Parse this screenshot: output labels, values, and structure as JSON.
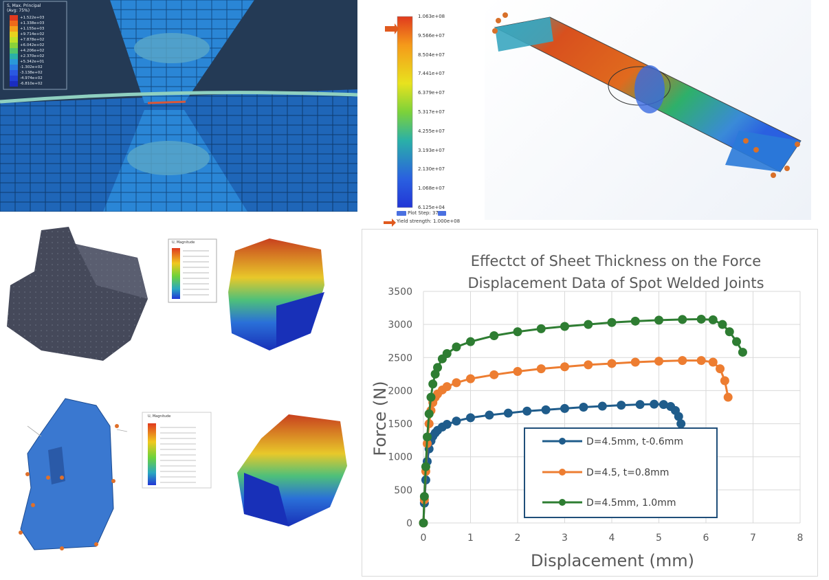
{
  "fea_top_left": {
    "legend_title": "S, Max. Principal",
    "legend_subtitle": "(Avg: 75%)",
    "legend_values": [
      "+1.522e+03",
      "+1.338e+03",
      "+1.155e+03",
      "+9.714e+02",
      "+7.878e+02",
      "+6.042e+02",
      "+4.206e+02",
      "+2.370e+02",
      "+5.342e+01",
      "-1.302e+02",
      "-3.138e+02",
      "-4.974e+02",
      "-6.810e+02"
    ]
  },
  "fea_top_middle": {
    "legend_values": [
      "1.063e+08",
      "9.566e+07",
      "8.504e+07",
      "7.441e+07",
      "6.379e+07",
      "5.317e+07",
      "4.255e+07",
      "3.193e+07",
      "2.130e+07",
      "1.068e+07",
      "6.125e+04"
    ],
    "plot_step": "Plot Step: 37",
    "yield_strength": "Yield strength: 1.000e+08",
    "colors": [
      "#e03a1e",
      "#f07a1a",
      "#f5b21a",
      "#e8e21e",
      "#b8e028",
      "#7cd23a",
      "#46c46c",
      "#2ab0a8",
      "#2a8ad8",
      "#2a60e0",
      "#2236d6"
    ]
  },
  "fea_mid_legend": {
    "title": "U, Magnitude"
  },
  "fea_low_legend": {
    "title": "U, Magnitude"
  },
  "chart_data": {
    "type": "scatter",
    "title_line1": "Effectct  of Sheet Thickness on the Force",
    "title_line2": "Displacement Data of Spot Welded Joints",
    "xlabel": "Displacement (mm)",
    "ylabel": "Force (N)",
    "xlim": [
      0,
      8
    ],
    "ylim": [
      0,
      3500
    ],
    "x_ticks": [
      0,
      1,
      2,
      3,
      4,
      5,
      6,
      7,
      8
    ],
    "y_ticks": [
      0,
      500,
      1000,
      1500,
      2000,
      2500,
      3000,
      3500
    ],
    "grid": true,
    "legend_position": "inside lower-center",
    "series": [
      {
        "name": "D=4.5mm, t-0.6mm",
        "color": "#1f5c8b",
        "x": [
          0,
          0.02,
          0.05,
          0.08,
          0.12,
          0.16,
          0.2,
          0.25,
          0.3,
          0.4,
          0.5,
          0.7,
          1.0,
          1.4,
          1.8,
          2.2,
          2.6,
          3.0,
          3.4,
          3.8,
          4.2,
          4.6,
          4.9,
          5.1,
          5.25,
          5.35,
          5.42,
          5.47
        ],
        "y": [
          0,
          300,
          650,
          930,
          1120,
          1240,
          1310,
          1360,
          1400,
          1450,
          1490,
          1540,
          1590,
          1630,
          1660,
          1690,
          1710,
          1730,
          1750,
          1765,
          1780,
          1790,
          1795,
          1790,
          1760,
          1700,
          1610,
          1500
        ]
      },
      {
        "name": "D=4.5, t=0.8mm",
        "color": "#ed7d31",
        "x": [
          0,
          0.02,
          0.05,
          0.08,
          0.12,
          0.16,
          0.2,
          0.25,
          0.3,
          0.4,
          0.5,
          0.7,
          1.0,
          1.5,
          2.0,
          2.5,
          3.0,
          3.5,
          4.0,
          4.5,
          5.0,
          5.5,
          5.9,
          6.15,
          6.3,
          6.4,
          6.47
        ],
        "y": [
          0,
          350,
          780,
          1200,
          1500,
          1700,
          1820,
          1900,
          1950,
          2010,
          2060,
          2120,
          2180,
          2240,
          2290,
          2330,
          2360,
          2390,
          2410,
          2430,
          2445,
          2455,
          2455,
          2430,
          2330,
          2150,
          1900
        ]
      },
      {
        "name": "D=4.5mm, 1.0mm",
        "color": "#2e7d32",
        "x": [
          0,
          0.02,
          0.05,
          0.08,
          0.12,
          0.16,
          0.2,
          0.25,
          0.3,
          0.4,
          0.5,
          0.7,
          1.0,
          1.5,
          2.0,
          2.5,
          3.0,
          3.5,
          4.0,
          4.5,
          5.0,
          5.5,
          5.9,
          6.15,
          6.35,
          6.5,
          6.65,
          6.78
        ],
        "y": [
          0,
          400,
          850,
          1300,
          1650,
          1900,
          2100,
          2250,
          2350,
          2480,
          2560,
          2660,
          2740,
          2830,
          2890,
          2935,
          2970,
          3000,
          3030,
          3050,
          3065,
          3075,
          3080,
          3070,
          3000,
          2890,
          2740,
          2580
        ]
      }
    ]
  }
}
